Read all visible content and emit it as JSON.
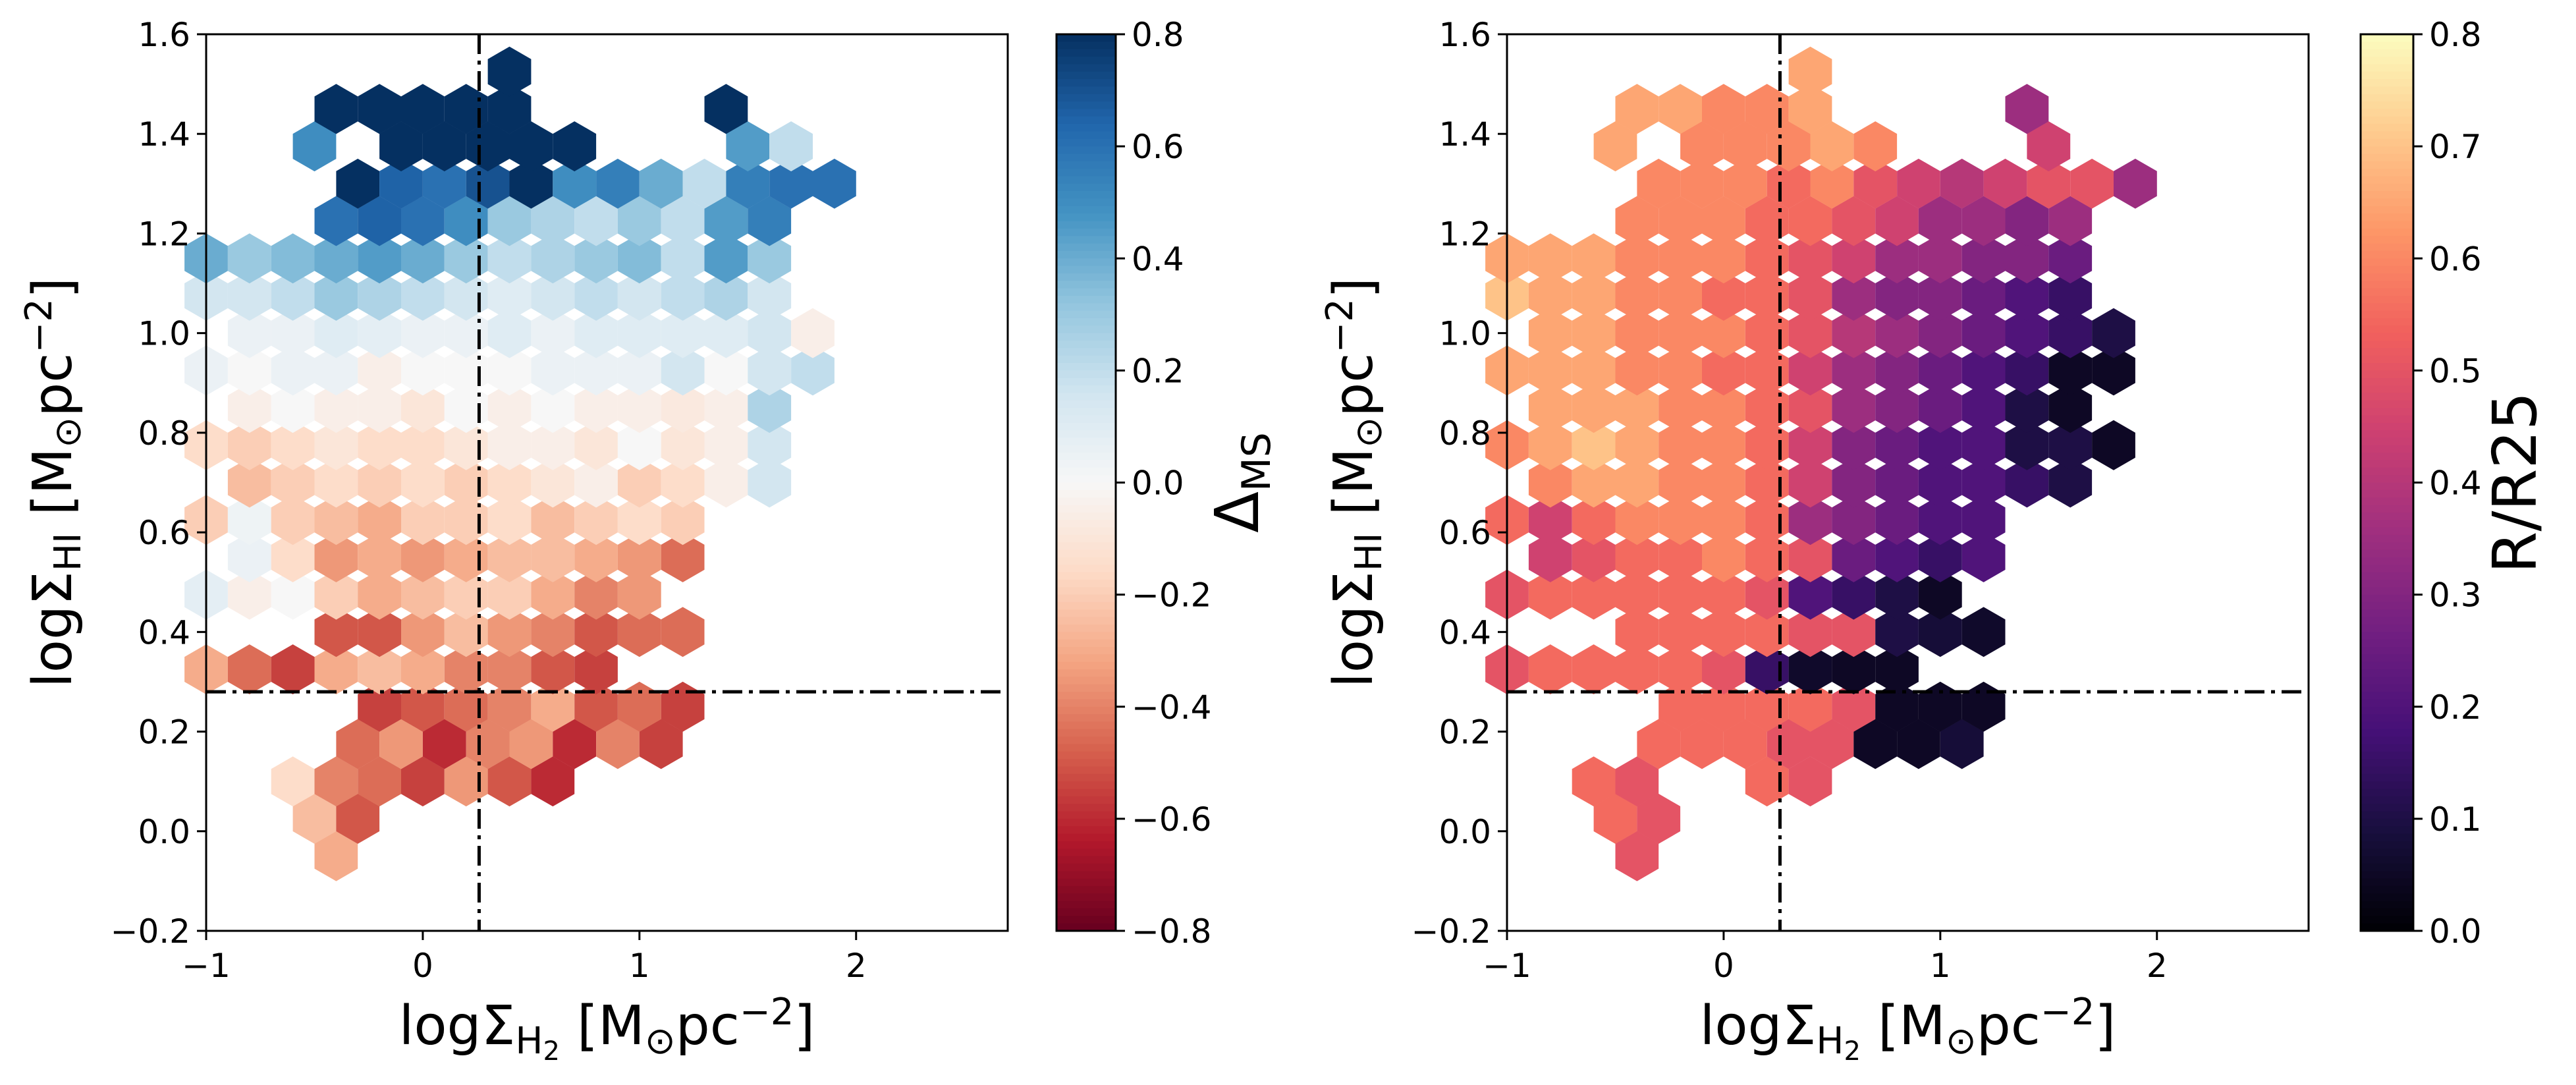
{
  "chart_data": [
    {
      "type": "hexbin",
      "color_by": "delta_ms",
      "xlabel_main": "logΣ",
      "xlabel_sub": "H",
      "xlabel_subsub": "2",
      "xlabel_units": " [M",
      "xlabel_sun": "⊙",
      "xlabel_rest": "pc",
      "xlabel_exp": "−2",
      "xlabel_close": "]",
      "ylabel_main": "logΣ",
      "ylabel_sub": "HI",
      "ylabel_units": " [M",
      "ylabel_sun": "⊙",
      "ylabel_rest": "pc",
      "ylabel_exp": "−2",
      "ylabel_close": "]",
      "xlim": [
        -1,
        2.7
      ],
      "ylim": [
        -0.2,
        1.6
      ],
      "xticks": [
        {
          "v": -1,
          "label": "−1"
        },
        {
          "v": 0,
          "label": "0"
        },
        {
          "v": 1,
          "label": "1"
        },
        {
          "v": 2,
          "label": "2"
        }
      ],
      "yticks": [
        {
          "v": -0.2,
          "label": "−0.2"
        },
        {
          "v": 0.0,
          "label": "0.0"
        },
        {
          "v": 0.2,
          "label": "0.2"
        },
        {
          "v": 0.4,
          "label": "0.4"
        },
        {
          "v": 0.6,
          "label": "0.6"
        },
        {
          "v": 0.8,
          "label": "0.8"
        },
        {
          "v": 1.0,
          "label": "1.0"
        },
        {
          "v": 1.2,
          "label": "1.2"
        },
        {
          "v": 1.4,
          "label": "1.4"
        },
        {
          "v": 1.6,
          "label": "1.6"
        }
      ],
      "vline_x": 0.26,
      "hline_y": 0.28,
      "colorbar": {
        "label_main": "Δ",
        "label_sub": "MS",
        "range": [
          -0.8,
          0.8
        ],
        "colormap": "RdBu",
        "ticks": [
          {
            "v": -0.8,
            "label": "−0.8"
          },
          {
            "v": -0.6,
            "label": "−0.6"
          },
          {
            "v": -0.4,
            "label": "−0.4"
          },
          {
            "v": -0.2,
            "label": "−0.2"
          },
          {
            "v": 0.0,
            "label": "0.0"
          },
          {
            "v": 0.2,
            "label": "0.2"
          },
          {
            "v": 0.4,
            "label": "0.4"
          },
          {
            "v": 0.6,
            "label": "0.6"
          },
          {
            "v": 0.8,
            "label": "0.8"
          }
        ]
      },
      "hexbins": [
        {
          "row": 0,
          "x": -0.4,
          "values": [
            -0.3
          ]
        },
        {
          "row": 1,
          "x": -0.5,
          "values": [
            -0.25,
            -0.5
          ]
        },
        {
          "row": 2,
          "x": -0.6,
          "values": [
            -0.15,
            -0.4,
            -0.45,
            -0.55,
            -0.35,
            -0.5,
            -0.6
          ]
        },
        {
          "row": 3,
          "x": -0.3,
          "values": [
            -0.45,
            -0.35,
            -0.6,
            -0.4,
            -0.35,
            -0.6,
            -0.4,
            -0.55
          ]
        },
        {
          "row": 4,
          "x": -0.2,
          "values": [
            -0.55,
            -0.5,
            -0.45,
            -0.4,
            -0.3,
            -0.5,
            -0.45,
            -0.55
          ]
        },
        {
          "row": 5,
          "x": -1.0,
          "values": [
            -0.3,
            -0.45,
            -0.55,
            -0.3,
            -0.25,
            -0.3,
            -0.4,
            -0.4,
            -0.5,
            -0.55
          ]
        },
        {
          "row": 6,
          "x": -0.4,
          "values": [
            -0.5,
            -0.5,
            -0.35,
            -0.25,
            -0.35,
            -0.4,
            -0.5,
            -0.45,
            -0.45
          ]
        },
        {
          "row": 7,
          "x": -1.0,
          "values": [
            0.08,
            -0.05,
            0.0,
            -0.2,
            -0.3,
            -0.25,
            -0.2,
            -0.2,
            -0.3,
            -0.4,
            -0.35
          ]
        },
        {
          "row": 8,
          "x": -0.8,
          "values": [
            0.05,
            -0.15,
            -0.35,
            -0.3,
            -0.35,
            -0.3,
            -0.25,
            -0.25,
            -0.3,
            -0.35,
            -0.45
          ]
        },
        {
          "row": 9,
          "x": -1.0,
          "values": [
            -0.2,
            0.04,
            -0.2,
            -0.25,
            -0.3,
            -0.2,
            -0.2,
            -0.15,
            -0.25,
            -0.2,
            -0.15,
            -0.2
          ]
        },
        {
          "row": 10,
          "x": -0.8,
          "values": [
            -0.25,
            -0.2,
            -0.15,
            -0.2,
            -0.15,
            -0.2,
            -0.15,
            -0.1,
            -0.05,
            -0.2,
            -0.15,
            -0.05,
            0.15
          ]
        },
        {
          "row": 11,
          "x": -1.0,
          "values": [
            -0.15,
            -0.2,
            -0.15,
            -0.1,
            -0.15,
            -0.15,
            -0.1,
            -0.05,
            -0.05,
            -0.1,
            0.0,
            -0.1,
            -0.05,
            0.15
          ]
        },
        {
          "row": 12,
          "x": -0.8,
          "values": [
            -0.05,
            0.0,
            -0.05,
            -0.05,
            -0.1,
            0.0,
            -0.05,
            0.0,
            -0.05,
            -0.05,
            -0.08,
            -0.05,
            0.25
          ]
        },
        {
          "row": 13,
          "x": -1.0,
          "values": [
            0.05,
            0.0,
            0.05,
            0.05,
            -0.05,
            0.0,
            0.0,
            0.0,
            0.05,
            0.05,
            0.05,
            0.15,
            0.0,
            0.15,
            0.2
          ]
        },
        {
          "row": 14,
          "x": -0.8,
          "values": [
            0.05,
            0.05,
            0.1,
            0.08,
            0.05,
            0.05,
            0.1,
            0.05,
            0.1,
            0.1,
            0.1,
            0.1,
            0.15,
            -0.05
          ]
        },
        {
          "row": 15,
          "x": -1.0,
          "values": [
            0.15,
            0.15,
            0.2,
            0.3,
            0.25,
            0.2,
            0.15,
            0.1,
            0.15,
            0.2,
            0.15,
            0.2,
            0.25,
            0.15
          ]
        },
        {
          "row": 16,
          "x": -1.0,
          "values": [
            0.4,
            0.3,
            0.35,
            0.4,
            0.45,
            0.4,
            0.3,
            0.2,
            0.25,
            0.3,
            0.35,
            0.2,
            0.45,
            0.3
          ]
        },
        {
          "row": 17,
          "x": -0.4,
          "values": [
            0.6,
            0.65,
            0.6,
            0.5,
            0.3,
            0.25,
            0.2,
            0.3,
            0.2,
            0.45,
            0.55
          ]
        },
        {
          "row": 18,
          "x": -0.3,
          "values": [
            0.8,
            0.65,
            0.6,
            0.7,
            0.8,
            0.5,
            0.55,
            0.4,
            0.2,
            0.55,
            0.6,
            0.6
          ]
        },
        {
          "row": 19,
          "x": -0.5,
          "values": [
            0.5,
            null,
            0.8,
            0.8,
            0.85,
            0.85,
            0.8,
            null,
            null,
            null,
            0.45,
            0.2
          ]
        },
        {
          "row": 20,
          "x": -0.4,
          "values": [
            0.85,
            0.85,
            0.85,
            0.85,
            0.85,
            null,
            null,
            null,
            null,
            0.85
          ]
        },
        {
          "row": 21,
          "x": 0.4,
          "values": [
            0.85
          ]
        }
      ]
    },
    {
      "type": "hexbin",
      "color_by": "r_over_r25",
      "xlabel_main": "logΣ",
      "xlabel_sub": "H",
      "xlabel_subsub": "2",
      "xlabel_units": " [M",
      "xlabel_sun": "⊙",
      "xlabel_rest": "pc",
      "xlabel_exp": "−2",
      "xlabel_close": "]",
      "ylabel_main": "logΣ",
      "ylabel_sub": "HI",
      "ylabel_units": " [M",
      "ylabel_sun": "⊙",
      "ylabel_rest": "pc",
      "ylabel_exp": "−2",
      "ylabel_close": "]",
      "xlim": [
        -1,
        2.7
      ],
      "ylim": [
        -0.2,
        1.6
      ],
      "xticks": [
        {
          "v": -1,
          "label": "−1"
        },
        {
          "v": 0,
          "label": "0"
        },
        {
          "v": 1,
          "label": "1"
        },
        {
          "v": 2,
          "label": "2"
        }
      ],
      "yticks": [
        {
          "v": -0.2,
          "label": "−0.2"
        },
        {
          "v": 0.0,
          "label": "0.0"
        },
        {
          "v": 0.2,
          "label": "0.2"
        },
        {
          "v": 0.4,
          "label": "0.4"
        },
        {
          "v": 0.6,
          "label": "0.6"
        },
        {
          "v": 0.8,
          "label": "0.8"
        },
        {
          "v": 1.0,
          "label": "1.0"
        },
        {
          "v": 1.2,
          "label": "1.2"
        },
        {
          "v": 1.4,
          "label": "1.4"
        },
        {
          "v": 1.6,
          "label": "1.6"
        }
      ],
      "vline_x": 0.26,
      "hline_y": 0.28,
      "colorbar": {
        "label_main": "R/R25",
        "label_sub": "",
        "range": [
          0.0,
          0.8
        ],
        "colormap": "magma",
        "ticks": [
          {
            "v": 0.0,
            "label": "0.0"
          },
          {
            "v": 0.1,
            "label": "0.1"
          },
          {
            "v": 0.2,
            "label": "0.2"
          },
          {
            "v": 0.3,
            "label": "0.3"
          },
          {
            "v": 0.4,
            "label": "0.4"
          },
          {
            "v": 0.5,
            "label": "0.5"
          },
          {
            "v": 0.6,
            "label": "0.6"
          },
          {
            "v": 0.7,
            "label": "0.7"
          },
          {
            "v": 0.8,
            "label": "0.8"
          }
        ]
      },
      "hexbins": [
        {
          "row": 0,
          "x": -0.4,
          "values": [
            0.5
          ]
        },
        {
          "row": 1,
          "x": -0.5,
          "values": [
            0.55,
            0.5
          ]
        },
        {
          "row": 2,
          "x": -0.6,
          "values": [
            0.55,
            0.5,
            null,
            null,
            0.55,
            0.5,
            null
          ]
        },
        {
          "row": 3,
          "x": -0.3,
          "values": [
            0.55,
            0.55,
            0.55,
            0.5,
            0.5,
            0.05,
            0.05,
            0.08
          ]
        },
        {
          "row": 4,
          "x": -0.2,
          "values": [
            0.55,
            0.55,
            0.55,
            0.55,
            0.5,
            0.05,
            0.05,
            0.05
          ]
        },
        {
          "row": 5,
          "x": -1.0,
          "values": [
            0.5,
            0.55,
            0.55,
            0.55,
            0.55,
            0.5,
            0.15,
            0.06,
            0.05,
            0.05
          ]
        },
        {
          "row": 6,
          "x": -0.4,
          "values": [
            0.55,
            0.55,
            0.55,
            0.55,
            0.5,
            0.5,
            0.1,
            0.08,
            0.06
          ]
        },
        {
          "row": 7,
          "x": -1.0,
          "values": [
            0.5,
            0.55,
            0.55,
            0.55,
            0.55,
            0.55,
            0.5,
            0.2,
            0.15,
            0.1,
            0.05
          ]
        },
        {
          "row": 8,
          "x": -0.8,
          "values": [
            0.45,
            0.5,
            0.55,
            0.55,
            0.6,
            0.55,
            0.5,
            0.25,
            0.2,
            0.15,
            0.2
          ]
        },
        {
          "row": 9,
          "x": -1.0,
          "values": [
            0.55,
            0.45,
            0.55,
            0.6,
            0.6,
            0.6,
            0.55,
            0.35,
            0.3,
            0.25,
            0.2,
            0.2
          ]
        },
        {
          "row": 10,
          "x": -0.8,
          "values": [
            0.6,
            0.65,
            0.65,
            0.6,
            0.6,
            0.55,
            0.45,
            0.3,
            0.25,
            0.2,
            0.2,
            0.15,
            0.1
          ]
        },
        {
          "row": 11,
          "x": -1.0,
          "values": [
            0.6,
            0.65,
            0.7,
            0.65,
            0.6,
            0.6,
            0.55,
            0.45,
            0.3,
            0.25,
            0.2,
            0.2,
            0.1,
            0.1,
            0.05
          ]
        },
        {
          "row": 12,
          "x": -0.8,
          "values": [
            0.65,
            0.65,
            0.65,
            0.6,
            0.6,
            0.55,
            0.5,
            0.35,
            0.3,
            0.25,
            0.2,
            0.1,
            0.05
          ]
        },
        {
          "row": 13,
          "x": -1.0,
          "values": [
            0.65,
            0.65,
            0.65,
            0.6,
            0.6,
            0.55,
            0.55,
            0.45,
            0.35,
            0.3,
            0.25,
            0.2,
            0.15,
            0.05,
            0.05
          ]
        },
        {
          "row": 14,
          "x": -0.8,
          "values": [
            0.65,
            0.65,
            0.6,
            0.6,
            0.6,
            0.55,
            0.5,
            0.4,
            0.35,
            0.3,
            0.25,
            0.2,
            0.15,
            0.1
          ]
        },
        {
          "row": 15,
          "x": -1.0,
          "values": [
            0.7,
            0.65,
            0.65,
            0.6,
            0.6,
            0.55,
            0.55,
            0.5,
            0.35,
            0.3,
            0.3,
            0.25,
            0.2,
            0.15
          ]
        },
        {
          "row": 16,
          "x": -1.0,
          "values": [
            0.65,
            0.65,
            0.65,
            0.6,
            0.6,
            0.6,
            0.55,
            0.5,
            0.45,
            0.35,
            0.35,
            0.3,
            0.3,
            0.25
          ]
        },
        {
          "row": 17,
          "x": -0.4,
          "values": [
            0.6,
            0.6,
            0.6,
            0.55,
            0.55,
            0.5,
            0.45,
            0.35,
            0.35,
            0.3,
            0.35
          ]
        },
        {
          "row": 18,
          "x": -0.3,
          "values": [
            0.6,
            0.6,
            0.6,
            0.55,
            0.6,
            0.5,
            0.45,
            0.4,
            0.45,
            0.5,
            0.5,
            0.35
          ]
        },
        {
          "row": 19,
          "x": -0.5,
          "values": [
            0.65,
            null,
            0.6,
            0.6,
            0.6,
            0.65,
            0.6,
            null,
            null,
            null,
            0.45,
            null
          ]
        },
        {
          "row": 20,
          "x": -0.4,
          "values": [
            0.65,
            0.65,
            0.6,
            0.6,
            0.65,
            null,
            null,
            null,
            null,
            0.35
          ]
        },
        {
          "row": 21,
          "x": 0.4,
          "values": [
            0.65
          ]
        }
      ]
    }
  ]
}
